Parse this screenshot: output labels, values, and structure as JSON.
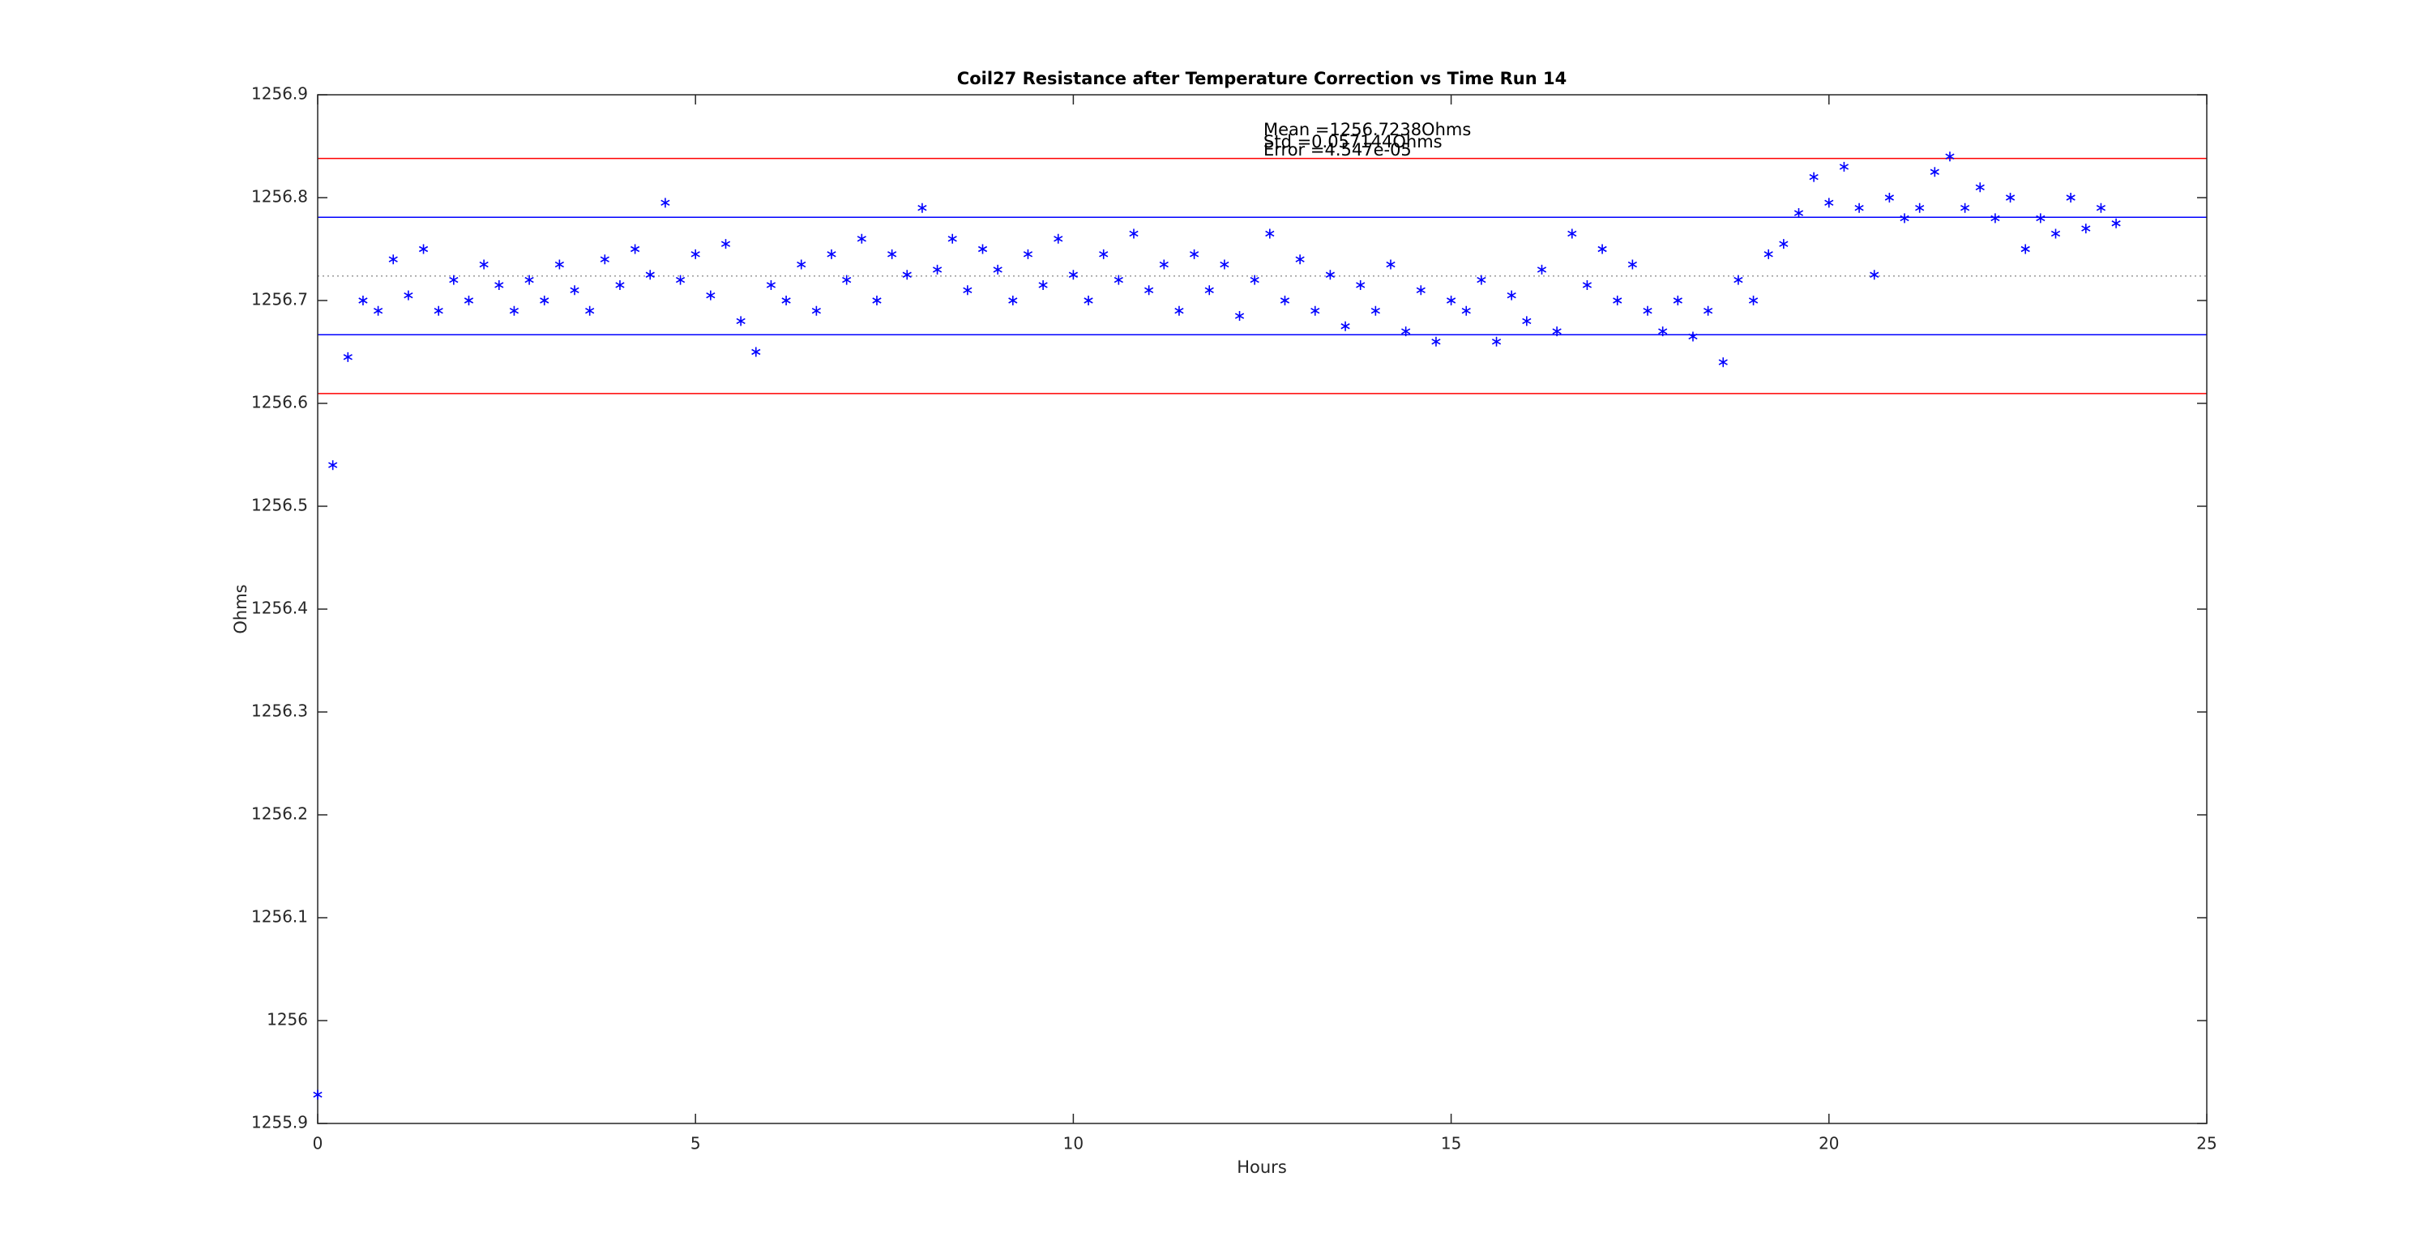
{
  "chart_data": {
    "type": "scatter",
    "title": "Coil27 Resistance after Temperature Correction vs Time Run 14",
    "x_label": "Hours",
    "y_label": "Ohms",
    "annotations": [
      "Mean =1256.7238Ohms",
      "Std =0.057144Ohms",
      "Error =4.547e-05"
    ],
    "xlim": [
      0,
      25
    ],
    "xticks": [
      0,
      5,
      10,
      15,
      20,
      25
    ],
    "ylim": [
      1255.9,
      1256.9
    ],
    "yticks": [
      1255.9,
      1256,
      1256.1,
      1256.2,
      1256.3,
      1256.4,
      1256.5,
      1256.6,
      1256.7,
      1256.8,
      1256.9
    ],
    "hlines": [
      {
        "value": 1256.7238,
        "color": "#999999",
        "dash": true
      },
      {
        "value": 1256.7809,
        "color": "#0000ff",
        "dash": false
      },
      {
        "value": 1256.6667,
        "color": "#0000ff",
        "dash": false
      },
      {
        "value": 1256.8381,
        "color": "#ff0000",
        "dash": false
      },
      {
        "value": 1256.6095,
        "color": "#ff0000",
        "dash": false
      }
    ],
    "series": [
      {
        "color": "#0000ff",
        "x": [
          0,
          0.2,
          0.4,
          0.6,
          0.8,
          1,
          1.2,
          1.4,
          1.6,
          1.8,
          2,
          2.2,
          2.4,
          2.6,
          2.8,
          3,
          3.2,
          3.4,
          3.6,
          3.8,
          4,
          4.2,
          4.4,
          4.6,
          4.8,
          5,
          5.2,
          5.4,
          5.6,
          5.8,
          6,
          6.2,
          6.4,
          6.6,
          6.8,
          7,
          7.2,
          7.4,
          7.6,
          7.8,
          8,
          8.2,
          8.4,
          8.6,
          8.8,
          9,
          9.2,
          9.4,
          9.6,
          9.8,
          10,
          10.2,
          10.4,
          10.6,
          10.8,
          11,
          11.2,
          11.4,
          11.6,
          11.8,
          12,
          12.2,
          12.4,
          12.6,
          12.8,
          13,
          13.2,
          13.4,
          13.6,
          13.8,
          14,
          14.2,
          14.4,
          14.6,
          14.8,
          15,
          15.2,
          15.4,
          15.6,
          15.8,
          16,
          16.2,
          16.4,
          16.6,
          16.8,
          17,
          17.2,
          17.4,
          17.6,
          17.8,
          18,
          18.2,
          18.4,
          18.6,
          18.8,
          19,
          19.2,
          19.4,
          19.6,
          19.8,
          20,
          20.2,
          20.4,
          20.6,
          20.8,
          21,
          21.2,
          21.4,
          21.6,
          21.8,
          22,
          22.2,
          22.4,
          22.6,
          22.8,
          23,
          23.2,
          23.4,
          23.6,
          23.8
        ],
        "values": [
          1255.928,
          1256.54,
          1256.645,
          1256.7,
          1256.69,
          1256.74,
          1256.705,
          1256.75,
          1256.69,
          1256.72,
          1256.7,
          1256.735,
          1256.715,
          1256.69,
          1256.72,
          1256.7,
          1256.735,
          1256.71,
          1256.69,
          1256.74,
          1256.715,
          1256.75,
          1256.725,
          1256.795,
          1256.72,
          1256.745,
          1256.705,
          1256.755,
          1256.68,
          1256.65,
          1256.715,
          1256.7,
          1256.735,
          1256.69,
          1256.745,
          1256.72,
          1256.76,
          1256.7,
          1256.745,
          1256.725,
          1256.79,
          1256.73,
          1256.76,
          1256.71,
          1256.75,
          1256.73,
          1256.7,
          1256.745,
          1256.715,
          1256.76,
          1256.725,
          1256.7,
          1256.745,
          1256.72,
          1256.765,
          1256.71,
          1256.735,
          1256.69,
          1256.745,
          1256.71,
          1256.735,
          1256.685,
          1256.72,
          1256.765,
          1256.7,
          1256.74,
          1256.69,
          1256.725,
          1256.675,
          1256.715,
          1256.69,
          1256.735,
          1256.67,
          1256.71,
          1256.66,
          1256.7,
          1256.69,
          1256.72,
          1256.66,
          1256.705,
          1256.68,
          1256.73,
          1256.67,
          1256.765,
          1256.715,
          1256.75,
          1256.7,
          1256.735,
          1256.69,
          1256.67,
          1256.7,
          1256.665,
          1256.69,
          1256.64,
          1256.72,
          1256.7,
          1256.745,
          1256.755,
          1256.785,
          1256.82,
          1256.795,
          1256.83,
          1256.79,
          1256.725,
          1256.8,
          1256.78,
          1256.79,
          1256.825,
          1256.84,
          1256.79,
          1256.81,
          1256.78,
          1256.8,
          1256.75,
          1256.78,
          1256.765,
          1256.8,
          1256.77,
          1256.79,
          1256.775
        ]
      }
    ]
  }
}
